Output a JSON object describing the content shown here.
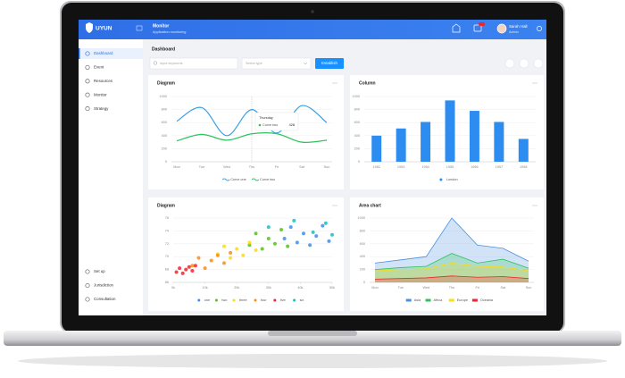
{
  "header": {
    "logo": "UYUN",
    "title": "Monitor",
    "subtitle": "Application monitoring",
    "user": "Sarah Hall",
    "role": "Admin"
  },
  "sidebar": {
    "menu": [
      "Dashboard",
      "Event",
      "Resources",
      "Monitor",
      "Strategy"
    ],
    "bottom": [
      "Set up",
      "Jurisdiction",
      "Consultation"
    ]
  },
  "page_title": "Dashboard",
  "toolbar": {
    "search_placeholder": "Input keywords",
    "select_placeholder": "Select type",
    "button": "Establish"
  },
  "chart_data": [
    {
      "type": "line",
      "title": "Diagram",
      "categories": [
        "Mon",
        "Tue",
        "Wed",
        "Thu",
        "Fri",
        "Sat",
        "Sun"
      ],
      "series": [
        {
          "name": "Curve one",
          "color": "#3ba0e6",
          "values": [
            620,
            830,
            400,
            800,
            440,
            860,
            600
          ]
        },
        {
          "name": "Curve two",
          "color": "#2fc25b",
          "values": [
            320,
            420,
            330,
            428,
            430,
            300,
            330
          ]
        }
      ],
      "ylim": [
        0,
        1000
      ],
      "yticks": [
        0,
        200,
        400,
        600,
        800,
        1000
      ],
      "grid": true,
      "smooth": true,
      "tooltip": "Thursday"
    },
    {
      "type": "bar",
      "title": "Column",
      "categories": [
        "1952",
        "1953",
        "1954",
        "1955",
        "1956",
        "1957",
        "1958"
      ],
      "series": [
        {
          "name": "London",
          "color": "#2d8cf0",
          "values": [
            400,
            510,
            610,
            940,
            780,
            610,
            350
          ]
        }
      ],
      "ylim": [
        0,
        1000
      ],
      "yticks": [
        0,
        200,
        400,
        600,
        800,
        1000
      ],
      "grid": true
    },
    {
      "type": "scatter",
      "title": "Diagram",
      "series": [
        {
          "name": "one",
          "color": "#3a8ef6",
          "x": [
            35000,
            37000,
            39000,
            41000,
            43000,
            45000,
            47000,
            49000
          ],
          "values": [
            72.8,
            74.6,
            72.2,
            73.6,
            71.8,
            73.2,
            74.8,
            72.4
          ]
        },
        {
          "name": "two",
          "color": "#52c41a",
          "x": [
            24000,
            26000,
            28000,
            30000,
            32000,
            34000,
            36000
          ],
          "values": [
            71.8,
            73.6,
            71.2,
            72.8,
            72.0,
            74.2,
            71.6
          ]
        },
        {
          "name": "three",
          "color": "#fadb14",
          "x": [
            14000,
            16000,
            18000,
            20000,
            22000,
            24000,
            26000
          ],
          "values": [
            70.4,
            71.6,
            69.8,
            71.2,
            70.2,
            72.2,
            71.0
          ]
        },
        {
          "name": "four",
          "color": "#fa8c16",
          "x": [
            6000,
            8000,
            10000,
            12000,
            14000,
            16000,
            18000
          ],
          "values": [
            68.6,
            69.8,
            68.2,
            69.4,
            70.2,
            69.0,
            70.6
          ]
        },
        {
          "name": "five",
          "color": "#f5222d",
          "x": [
            1000,
            2000,
            3000,
            4000,
            5000,
            6000,
            7000
          ],
          "values": [
            67.6,
            68.2,
            67.4,
            68.0,
            68.4,
            67.8,
            68.6
          ]
        },
        {
          "name": "six",
          "color": "#13c2c2",
          "x": [
            30000,
            38000,
            44000,
            48000,
            50000
          ],
          "values": [
            74.6,
            75.6,
            73.8,
            75.2,
            73.4
          ]
        }
      ],
      "xlim": [
        0,
        50000
      ],
      "xticks": [
        {
          "value": 0,
          "label": "0k"
        },
        {
          "value": 10000,
          "label": "10k"
        },
        {
          "value": 20000,
          "label": "20k"
        },
        {
          "value": 30000,
          "label": "30k"
        },
        {
          "value": 40000,
          "label": "40k"
        },
        {
          "value": 50000,
          "label": "50k"
        }
      ],
      "ylim": [
        66,
        76
      ],
      "yticks": [
        66,
        68,
        70,
        72,
        74,
        76
      ],
      "grid": true
    },
    {
      "type": "area",
      "title": "Area chart",
      "categories": [
        "Mon",
        "Tue",
        "Wed",
        "Thu",
        "Fri",
        "Sat",
        "Sun"
      ],
      "series": [
        {
          "name": "Asia",
          "color": "#4a90e2",
          "values": [
            300,
            350,
            400,
            1000,
            580,
            530,
            330
          ]
        },
        {
          "name": "Africa",
          "color": "#2fc25b",
          "values": [
            200,
            230,
            250,
            450,
            300,
            360,
            220
          ]
        },
        {
          "name": "Europe",
          "color": "#fadb14",
          "values": [
            180,
            200,
            210,
            300,
            250,
            240,
            180
          ]
        },
        {
          "name": "Oceania",
          "color": "#f5222d",
          "values": [
            50,
            60,
            70,
            100,
            80,
            90,
            60
          ]
        }
      ],
      "ylim": [
        0,
        1000
      ],
      "yticks": [
        0,
        200,
        400,
        600,
        800,
        1000
      ],
      "grid": true
    }
  ]
}
